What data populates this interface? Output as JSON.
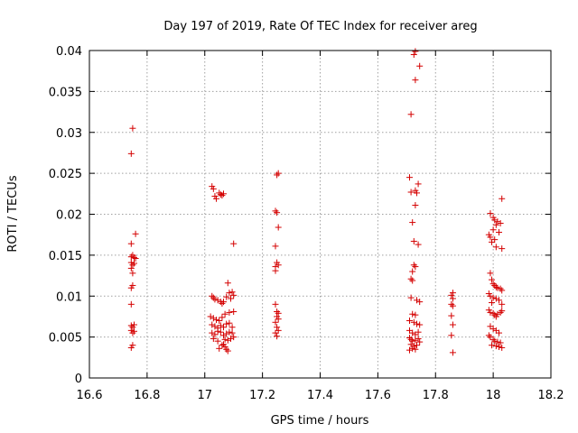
{
  "colors": {
    "series": "#d40000",
    "axis": "#000000",
    "grid": "#a0a0a0"
  },
  "chart_data": {
    "type": "scatter",
    "title": "Day 197 of 2019, Rate Of TEC Index for receiver areg",
    "xlabel": "GPS time / hours",
    "ylabel": "ROTI / TECUs",
    "xlim": [
      16.6,
      18.2
    ],
    "ylim": [
      0,
      0.04
    ],
    "grid": true,
    "xticks": [
      16.6,
      16.8,
      17.0,
      17.2,
      17.4,
      17.6,
      17.8,
      18.0,
      18.2
    ],
    "xtick_labels": [
      "16.6",
      "16.8",
      "17",
      "17.2",
      "17.4",
      "17.6",
      "17.8",
      "18",
      "18.2"
    ],
    "yticks": [
      0,
      0.005,
      0.01,
      0.015,
      0.02,
      0.025,
      0.03,
      0.035,
      0.04
    ],
    "ytick_labels": [
      "0",
      "0.005",
      "0.01",
      "0.015",
      "0.02",
      "0.025",
      "0.03",
      "0.035",
      "0.04"
    ],
    "marker": "+",
    "series": [
      {
        "name": "ROTI",
        "points": [
          [
            16.75,
            0.0305
          ],
          [
            16.745,
            0.0274
          ],
          [
            16.76,
            0.0176
          ],
          [
            16.745,
            0.0164
          ],
          [
            16.75,
            0.015
          ],
          [
            16.745,
            0.0148
          ],
          [
            16.755,
            0.0147
          ],
          [
            16.76,
            0.0146
          ],
          [
            16.745,
            0.0141
          ],
          [
            16.755,
            0.014
          ],
          [
            16.75,
            0.0138
          ],
          [
            16.745,
            0.0134
          ],
          [
            16.75,
            0.0128
          ],
          [
            16.75,
            0.0113
          ],
          [
            16.745,
            0.011
          ],
          [
            16.745,
            0.009
          ],
          [
            16.745,
            0.0064
          ],
          [
            16.755,
            0.0065
          ],
          [
            16.75,
            0.0062
          ],
          [
            16.745,
            0.0058
          ],
          [
            16.755,
            0.0057
          ],
          [
            16.75,
            0.0055
          ],
          [
            16.75,
            0.004
          ],
          [
            16.745,
            0.0037
          ],
          [
            17.025,
            0.0234
          ],
          [
            17.03,
            0.0231
          ],
          [
            17.035,
            0.0222
          ],
          [
            17.04,
            0.0219
          ],
          [
            17.05,
            0.0226
          ],
          [
            17.055,
            0.0224
          ],
          [
            17.065,
            0.0225
          ],
          [
            17.06,
            0.0223
          ],
          [
            17.1,
            0.0164
          ],
          [
            17.08,
            0.0116
          ],
          [
            17.025,
            0.01
          ],
          [
            17.03,
            0.0098
          ],
          [
            17.035,
            0.0096
          ],
          [
            17.045,
            0.0095
          ],
          [
            17.055,
            0.0093
          ],
          [
            17.06,
            0.0091
          ],
          [
            17.065,
            0.0093
          ],
          [
            17.075,
            0.0099
          ],
          [
            17.085,
            0.0104
          ],
          [
            17.095,
            0.0105
          ],
          [
            17.1,
            0.0101
          ],
          [
            17.09,
            0.0097
          ],
          [
            17.02,
            0.0075
          ],
          [
            17.03,
            0.0073
          ],
          [
            17.04,
            0.0071
          ],
          [
            17.05,
            0.007
          ],
          [
            17.06,
            0.0074
          ],
          [
            17.07,
            0.0078
          ],
          [
            17.085,
            0.008
          ],
          [
            17.1,
            0.0081
          ],
          [
            17.025,
            0.0065
          ],
          [
            17.035,
            0.0063
          ],
          [
            17.045,
            0.0061
          ],
          [
            17.055,
            0.0064
          ],
          [
            17.065,
            0.0062
          ],
          [
            17.075,
            0.0066
          ],
          [
            17.085,
            0.0067
          ],
          [
            17.095,
            0.0062
          ],
          [
            17.025,
            0.0055
          ],
          [
            17.035,
            0.0053
          ],
          [
            17.045,
            0.0057
          ],
          [
            17.055,
            0.0056
          ],
          [
            17.065,
            0.0052
          ],
          [
            17.075,
            0.0054
          ],
          [
            17.085,
            0.0056
          ],
          [
            17.095,
            0.0055
          ],
          [
            17.1,
            0.005
          ],
          [
            17.09,
            0.0048
          ],
          [
            17.08,
            0.0046
          ],
          [
            17.07,
            0.0047
          ],
          [
            17.03,
            0.0048
          ],
          [
            17.045,
            0.0045
          ],
          [
            17.06,
            0.004
          ],
          [
            17.07,
            0.0038
          ],
          [
            17.05,
            0.0036
          ],
          [
            17.065,
            0.0041
          ],
          [
            17.075,
            0.0035
          ],
          [
            17.08,
            0.0033
          ],
          [
            17.255,
            0.025
          ],
          [
            17.25,
            0.0248
          ],
          [
            17.245,
            0.0204
          ],
          [
            17.25,
            0.0202
          ],
          [
            17.255,
            0.0184
          ],
          [
            17.245,
            0.0161
          ],
          [
            17.25,
            0.0141
          ],
          [
            17.255,
            0.0138
          ],
          [
            17.245,
            0.0136
          ],
          [
            17.245,
            0.0131
          ],
          [
            17.245,
            0.009
          ],
          [
            17.25,
            0.0081
          ],
          [
            17.255,
            0.0079
          ],
          [
            17.25,
            0.0075
          ],
          [
            17.255,
            0.0072
          ],
          [
            17.245,
            0.0068
          ],
          [
            17.25,
            0.0062
          ],
          [
            17.255,
            0.0058
          ],
          [
            17.245,
            0.0055
          ],
          [
            17.25,
            0.0051
          ],
          [
            17.73,
            0.0399
          ],
          [
            17.725,
            0.0395
          ],
          [
            17.745,
            0.0381
          ],
          [
            17.73,
            0.0364
          ],
          [
            17.715,
            0.0322
          ],
          [
            17.71,
            0.0245
          ],
          [
            17.74,
            0.0237
          ],
          [
            17.73,
            0.0229
          ],
          [
            17.715,
            0.0227
          ],
          [
            17.735,
            0.0226
          ],
          [
            17.73,
            0.0211
          ],
          [
            17.72,
            0.019
          ],
          [
            17.725,
            0.0167
          ],
          [
            17.74,
            0.0163
          ],
          [
            17.725,
            0.0138
          ],
          [
            17.73,
            0.0136
          ],
          [
            17.72,
            0.013
          ],
          [
            17.715,
            0.0121
          ],
          [
            17.72,
            0.0119
          ],
          [
            17.715,
            0.0098
          ],
          [
            17.735,
            0.0095
          ],
          [
            17.745,
            0.0093
          ],
          [
            17.72,
            0.0078
          ],
          [
            17.73,
            0.0077
          ],
          [
            17.71,
            0.007
          ],
          [
            17.725,
            0.0068
          ],
          [
            17.735,
            0.0066
          ],
          [
            17.745,
            0.0065
          ],
          [
            17.71,
            0.0058
          ],
          [
            17.72,
            0.0055
          ],
          [
            17.73,
            0.0053
          ],
          [
            17.74,
            0.0056
          ],
          [
            17.71,
            0.0049
          ],
          [
            17.715,
            0.0047
          ],
          [
            17.72,
            0.0045
          ],
          [
            17.73,
            0.0046
          ],
          [
            17.74,
            0.0048
          ],
          [
            17.745,
            0.0044
          ],
          [
            17.715,
            0.0041
          ],
          [
            17.725,
            0.0039
          ],
          [
            17.735,
            0.004
          ],
          [
            17.72,
            0.0036
          ],
          [
            17.73,
            0.0035
          ],
          [
            17.71,
            0.0034
          ],
          [
            17.86,
            0.0104
          ],
          [
            17.855,
            0.0101
          ],
          [
            17.86,
            0.0097
          ],
          [
            17.855,
            0.009
          ],
          [
            17.86,
            0.0088
          ],
          [
            17.855,
            0.0076
          ],
          [
            17.86,
            0.0065
          ],
          [
            17.855,
            0.0052
          ],
          [
            17.86,
            0.0031
          ],
          [
            18.03,
            0.0219
          ],
          [
            17.99,
            0.0201
          ],
          [
            18.0,
            0.0196
          ],
          [
            18.005,
            0.0193
          ],
          [
            18.015,
            0.0191
          ],
          [
            18.025,
            0.0189
          ],
          [
            18.01,
            0.0187
          ],
          [
            18.0,
            0.0181
          ],
          [
            18.02,
            0.0178
          ],
          [
            17.985,
            0.0175
          ],
          [
            17.99,
            0.0172
          ],
          [
            18.005,
            0.0169
          ],
          [
            17.995,
            0.0166
          ],
          [
            18.01,
            0.016
          ],
          [
            18.03,
            0.0158
          ],
          [
            17.99,
            0.0128
          ],
          [
            17.995,
            0.012
          ],
          [
            18.0,
            0.0115
          ],
          [
            18.005,
            0.0113
          ],
          [
            18.01,
            0.0111
          ],
          [
            18.015,
            0.011
          ],
          [
            18.025,
            0.0109
          ],
          [
            18.03,
            0.0107
          ],
          [
            17.985,
            0.0103
          ],
          [
            17.99,
            0.01
          ],
          [
            18.0,
            0.0098
          ],
          [
            18.01,
            0.0097
          ],
          [
            18.02,
            0.0095
          ],
          [
            18.03,
            0.009
          ],
          [
            17.995,
            0.0092
          ],
          [
            17.985,
            0.0083
          ],
          [
            17.99,
            0.008
          ],
          [
            18.0,
            0.0079
          ],
          [
            18.005,
            0.0077
          ],
          [
            18.015,
            0.0078
          ],
          [
            18.025,
            0.008
          ],
          [
            18.03,
            0.0082
          ],
          [
            18.01,
            0.0075
          ],
          [
            17.99,
            0.0063
          ],
          [
            18.0,
            0.006
          ],
          [
            18.01,
            0.0058
          ],
          [
            18.02,
            0.0055
          ],
          [
            17.985,
            0.0052
          ],
          [
            17.99,
            0.005
          ],
          [
            18.0,
            0.0047
          ],
          [
            18.005,
            0.0045
          ],
          [
            18.015,
            0.0044
          ],
          [
            18.025,
            0.0043
          ],
          [
            17.995,
            0.004
          ],
          [
            18.01,
            0.0039
          ],
          [
            18.02,
            0.0038
          ],
          [
            18.03,
            0.0037
          ]
        ]
      }
    ]
  }
}
